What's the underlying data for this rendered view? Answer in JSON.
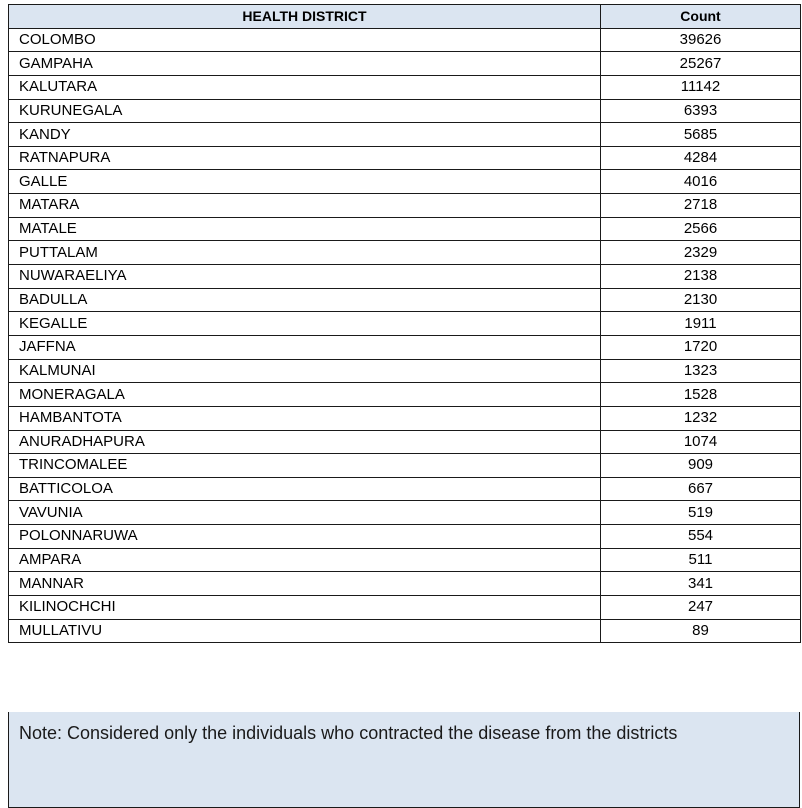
{
  "table": {
    "headers": [
      "HEALTH DISTRICT",
      "Count"
    ],
    "rows": [
      [
        "COLOMBO",
        "39626"
      ],
      [
        "GAMPAHA",
        "25267"
      ],
      [
        "KALUTARA",
        "11142"
      ],
      [
        "KURUNEGALA",
        "6393"
      ],
      [
        "KANDY",
        "5685"
      ],
      [
        "RATNAPURA",
        "4284"
      ],
      [
        "GALLE",
        "4016"
      ],
      [
        "MATARA",
        "2718"
      ],
      [
        "MATALE",
        "2566"
      ],
      [
        "PUTTALAM",
        "2329"
      ],
      [
        "NUWARAELIYA",
        "2138"
      ],
      [
        "BADULLA",
        "2130"
      ],
      [
        "KEGALLE",
        "1911"
      ],
      [
        "JAFFNA",
        "1720"
      ],
      [
        "KALMUNAI",
        "1323"
      ],
      [
        "MONERAGALA",
        "1528"
      ],
      [
        "HAMBANTOTA",
        "1232"
      ],
      [
        "ANURADHAPURA",
        "1074"
      ],
      [
        "TRINCOMALEE",
        "909"
      ],
      [
        "BATTICOLOA",
        "667"
      ],
      [
        "VAVUNIA",
        "519"
      ],
      [
        "POLONNARUWA",
        "554"
      ],
      [
        "AMPARA",
        "511"
      ],
      [
        "MANNAR",
        "341"
      ],
      [
        "KILINOCHCHI",
        "247"
      ],
      [
        "MULLATIVU",
        "89"
      ]
    ]
  },
  "note": "Note:  Considered only the individuals who contracted the disease from the districts",
  "colors": {
    "header_bg": "#dbe5f1",
    "border": "#1a1a1a"
  }
}
